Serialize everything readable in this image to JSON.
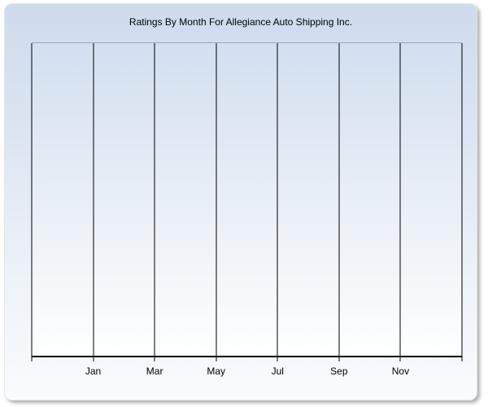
{
  "panel": {
    "title": "Ratings By Month For Allegiance Auto Shipping Inc."
  },
  "chart_data": {
    "type": "line",
    "title": "Ratings By Month For Allegiance Auto Shipping Inc.",
    "series": [],
    "x_axis": {
      "tick_labels": [
        "Jan",
        "Mar",
        "May",
        "Jul",
        "Sep",
        "Nov"
      ],
      "gridline_count": 8,
      "labeled_gridline_indices": [
        1,
        2,
        3,
        4,
        5,
        6
      ]
    },
    "y_axis": {
      "tick_labels": []
    },
    "legend": "none",
    "grid": "vertical"
  },
  "colors": {
    "panel_gradient_top": "#cedbed",
    "panel_gradient_bottom": "#fafbfd",
    "plot_gradient_top": "#d3dfef",
    "plot_gradient_bottom": "#feffff",
    "gridline": "#000000",
    "axis_line": "#000000",
    "plot_top_border": "#a4abb6",
    "title_text": "#000000",
    "label_text": "#000000"
  }
}
